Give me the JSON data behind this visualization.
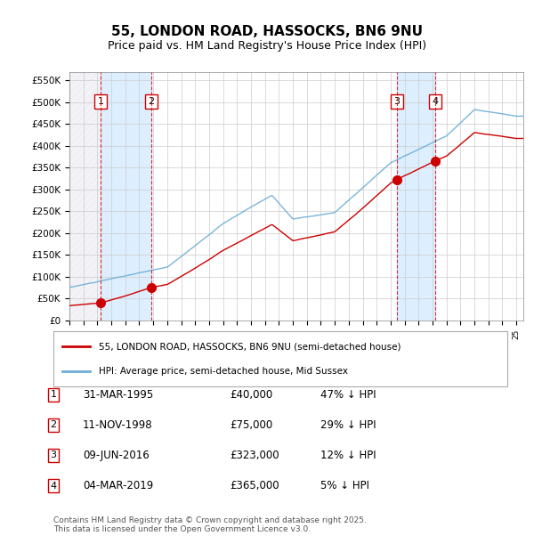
{
  "title": "55, LONDON ROAD, HASSOCKS, BN6 9NU",
  "subtitle": "Price paid vs. HM Land Registry's House Price Index (HPI)",
  "ylabel": "",
  "ylim": [
    0,
    570000
  ],
  "yticks": [
    0,
    50000,
    100000,
    150000,
    200000,
    250000,
    300000,
    350000,
    400000,
    450000,
    500000,
    550000
  ],
  "ytick_labels": [
    "£0",
    "£50K",
    "£100K",
    "£150K",
    "£200K",
    "£250K",
    "£300K",
    "£350K",
    "£400K",
    "£450K",
    "£500K",
    "£550K"
  ],
  "hpi_color": "#6baed6",
  "price_color": "#cc0000",
  "sale_marker_color": "#cc0000",
  "grid_color": "#cccccc",
  "bg_color": "#ffffff",
  "sale_vline_color": "#cc0000",
  "shade_color": "#ddeeff",
  "transactions": [
    {
      "date_num": 1995.25,
      "price": 40000,
      "label": "1"
    },
    {
      "date_num": 1998.86,
      "price": 75000,
      "label": "2"
    },
    {
      "date_num": 2016.44,
      "price": 323000,
      "label": "3"
    },
    {
      "date_num": 2019.17,
      "price": 365000,
      "label": "4"
    }
  ],
  "legend_entries": [
    {
      "label": "55, LONDON ROAD, HASSOCKS, BN6 9NU (semi-detached house)",
      "color": "#cc0000"
    },
    {
      "label": "HPI: Average price, semi-detached house, Mid Sussex",
      "color": "#6baed6"
    }
  ],
  "table_rows": [
    {
      "num": "1",
      "date": "31-MAR-1995",
      "price": "£40,000",
      "note": "47% ↓ HPI"
    },
    {
      "num": "2",
      "date": "11-NOV-1998",
      "price": "£75,000",
      "note": "29% ↓ HPI"
    },
    {
      "num": "3",
      "date": "09-JUN-2016",
      "price": "£323,000",
      "note": "12% ↓ HPI"
    },
    {
      "num": "4",
      "date": "04-MAR-2019",
      "price": "£365,000",
      "note": "5% ↓ HPI"
    }
  ],
  "footer": "Contains HM Land Registry data © Crown copyright and database right 2025.\nThis data is licensed under the Open Government Licence v3.0.",
  "hatch_color": "#aaaacc"
}
